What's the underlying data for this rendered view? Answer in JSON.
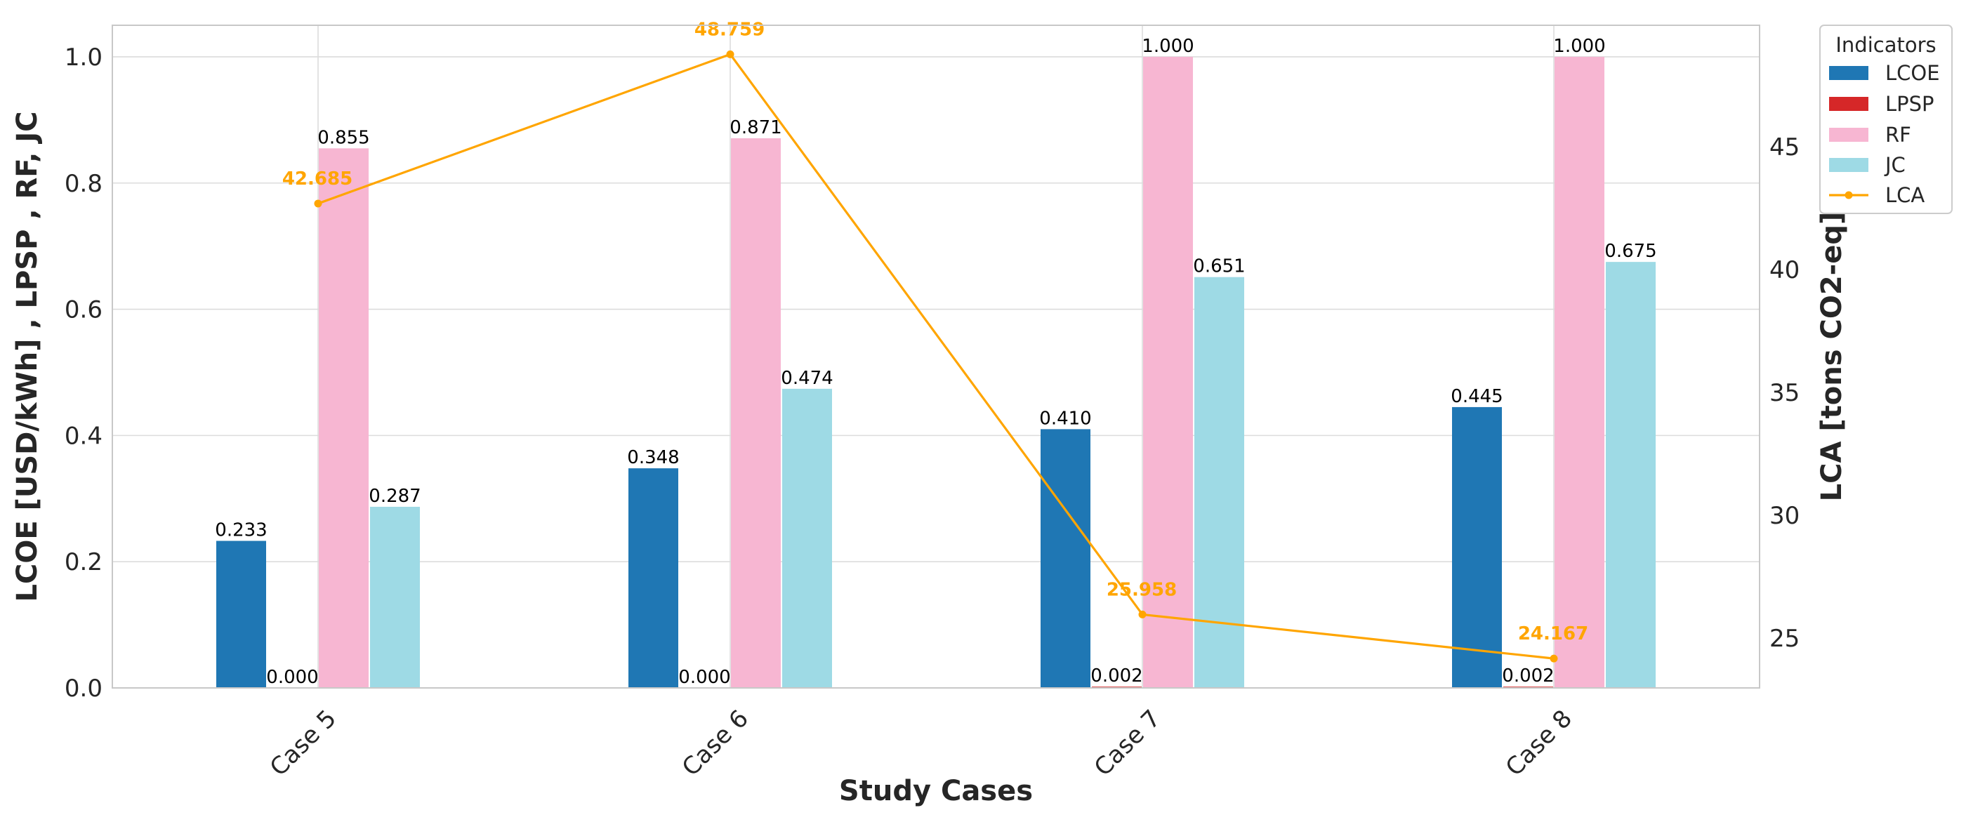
{
  "chart_data": {
    "type": "bar",
    "categories": [
      "Case 5",
      "Case 6",
      "Case 7",
      "Case 8"
    ],
    "series": [
      {
        "name": "LCOE",
        "color": "#1f77b4",
        "values": [
          0.233,
          0.348,
          0.41,
          0.445
        ],
        "labels": [
          "0.233",
          "0.348",
          "0.410",
          "0.445"
        ]
      },
      {
        "name": "LPSP",
        "color": "#d62728",
        "values": [
          0.0,
          0.0,
          0.002,
          0.002
        ],
        "labels": [
          "0.000",
          "0.000",
          "0.002",
          "0.002"
        ]
      },
      {
        "name": "RF",
        "color": "#f7b6d2",
        "values": [
          0.855,
          0.871,
          1.0,
          1.0
        ],
        "labels": [
          "0.855",
          "0.871",
          "1.000",
          "1.000"
        ]
      },
      {
        "name": "JC",
        "color": "#9edae5",
        "values": [
          0.287,
          0.474,
          0.651,
          0.675
        ],
        "labels": [
          "0.287",
          "0.474",
          "0.651",
          "0.675"
        ]
      }
    ],
    "line_series": {
      "name": "LCA",
      "color": "#ffa500",
      "axis": "right",
      "values": [
        42.685,
        48.759,
        25.958,
        24.167
      ],
      "labels": [
        "42.685",
        "48.759",
        "25.958",
        "24.167"
      ]
    },
    "xlabel": "Study Cases",
    "ylabel": "LCOE [USD/kWh] , LPSP , RF, JC",
    "y2label": "LCA [tons CO2-eq]",
    "ylim": [
      0,
      1.05
    ],
    "yticks": [
      "0.0",
      "0.2",
      "0.4",
      "0.6",
      "0.8",
      "1.0"
    ],
    "y2lim": [
      22.97,
      49.94
    ],
    "y2ticks": [
      "25",
      "30",
      "35",
      "40",
      "45"
    ],
    "legend": {
      "title": "Indicators",
      "position": "outside-top-right",
      "entries": [
        "LCOE",
        "LPSP",
        "RF",
        "JC",
        "LCA"
      ]
    },
    "grid": true
  }
}
